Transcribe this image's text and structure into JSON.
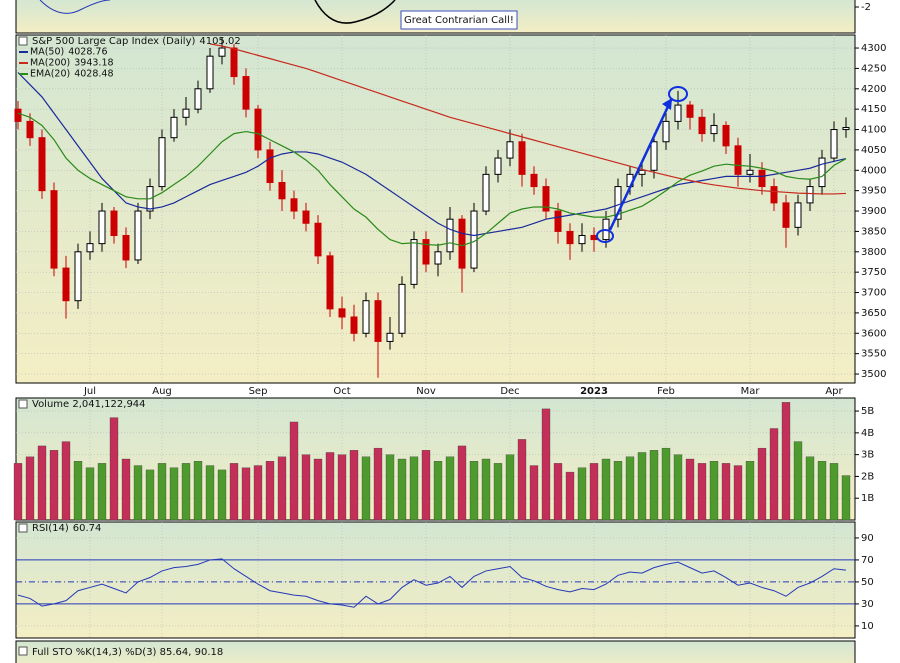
{
  "chart_data": [
    {
      "type": "candlestick",
      "title": "S&P 500 Large Cap Index (Daily)",
      "categories": [
        null,
        null,
        null,
        null,
        null,
        null,
        "Jul",
        null,
        null,
        null,
        null,
        null,
        "Aug",
        null,
        null,
        null,
        null,
        null,
        null,
        null,
        "Sep",
        null,
        null,
        null,
        null,
        null,
        null,
        "Oct",
        null,
        null,
        null,
        null,
        null,
        null,
        "Nov",
        null,
        null,
        null,
        null,
        null,
        null,
        "Dec",
        null,
        null,
        null,
        null,
        null,
        null,
        "2023",
        null,
        null,
        null,
        null,
        null,
        "Feb",
        null,
        null,
        null,
        null,
        null,
        null,
        "Mar",
        null,
        null,
        null,
        null,
        null,
        null,
        "Apr",
        null
      ],
      "open": [
        4150,
        4120,
        4080,
        3950,
        3760,
        3680,
        3800,
        3820,
        3900,
        3840,
        3780,
        3900,
        3960,
        4080,
        4130,
        4150,
        4200,
        4280,
        4300,
        4230,
        4150,
        4050,
        3970,
        3930,
        3900,
        3870,
        3790,
        3660,
        3640,
        3600,
        3680,
        3580,
        3600,
        3720,
        3830,
        3770,
        3800,
        3880,
        3760,
        3900,
        3990,
        4030,
        4070,
        3990,
        3960,
        3900,
        3850,
        3820,
        3840,
        3830,
        3880,
        3960,
        3990,
        4000,
        4070,
        4120,
        4160,
        4130,
        4090,
        4110,
        4060,
        3990,
        4000,
        3960,
        3920,
        3860,
        3920,
        3960,
        4030,
        4100
      ],
      "high": [
        4170,
        4140,
        4100,
        3970,
        3790,
        3820,
        3850,
        3920,
        3910,
        3860,
        3920,
        3980,
        4100,
        4150,
        4180,
        4220,
        4300,
        4325,
        4310,
        4250,
        4160,
        4070,
        4000,
        3950,
        3920,
        3890,
        3800,
        3690,
        3670,
        3700,
        3700,
        3640,
        3740,
        3850,
        3850,
        3820,
        3910,
        3890,
        3920,
        4010,
        4050,
        4100,
        4090,
        4010,
        3980,
        3920,
        3870,
        3870,
        3860,
        3900,
        3980,
        4010,
        4020,
        4090,
        4140,
        4195,
        4170,
        4150,
        4140,
        4120,
        4080,
        4040,
        4020,
        3980,
        3940,
        3940,
        3980,
        4050,
        4120,
        4130
      ],
      "low": [
        4100,
        4060,
        3930,
        3740,
        3636,
        3660,
        3780,
        3800,
        3820,
        3760,
        3770,
        3880,
        3950,
        4070,
        4110,
        4140,
        4190,
        4260,
        4210,
        4130,
        4030,
        3950,
        3900,
        3880,
        3850,
        3770,
        3640,
        3610,
        3580,
        3590,
        3491,
        3560,
        3590,
        3710,
        3750,
        3740,
        3780,
        3700,
        3750,
        3890,
        3970,
        4010,
        3960,
        3940,
        3880,
        3820,
        3780,
        3800,
        3800,
        3810,
        3860,
        3940,
        3960,
        3980,
        4050,
        4100,
        4100,
        4070,
        4070,
        4040,
        3960,
        3970,
        3940,
        3900,
        3810,
        3840,
        3900,
        3940,
        4020,
        4080
      ],
      "close": [
        4120,
        4080,
        3950,
        3760,
        3680,
        3800,
        3820,
        3900,
        3840,
        3780,
        3900,
        3960,
        4080,
        4130,
        4150,
        4200,
        4280,
        4300,
        4230,
        4150,
        4050,
        3970,
        3930,
        3900,
        3870,
        3790,
        3660,
        3640,
        3600,
        3680,
        3580,
        3600,
        3720,
        3830,
        3770,
        3800,
        3880,
        3760,
        3900,
        3990,
        4030,
        4070,
        3990,
        3960,
        3900,
        3850,
        3820,
        3840,
        3830,
        3880,
        3960,
        3990,
        4000,
        4070,
        4120,
        4160,
        4130,
        4090,
        4110,
        4060,
        3990,
        4000,
        3960,
        3920,
        3860,
        3920,
        3960,
        4030,
        4100,
        4105.02
      ],
      "up_color": "#000000",
      "down_color": "#cc0000",
      "series": [
        {
          "name": "MA(50)",
          "color": "#1a2a9c",
          "values": [
            4240,
            4210,
            4180,
            4140,
            4100,
            4060,
            4020,
            3980,
            3950,
            3920,
            3910,
            3905,
            3910,
            3920,
            3935,
            3950,
            3965,
            3975,
            3985,
            3995,
            4010,
            4030,
            4040,
            4045,
            4045,
            4040,
            4030,
            4020,
            4005,
            3990,
            3970,
            3950,
            3930,
            3910,
            3890,
            3870,
            3855,
            3845,
            3840,
            3845,
            3850,
            3855,
            3860,
            3870,
            3880,
            3885,
            3890,
            3895,
            3900,
            3905,
            3915,
            3925,
            3935,
            3945,
            3955,
            3965,
            3970,
            3975,
            3980,
            3985,
            3985,
            3985,
            3985,
            3990,
            3995,
            4000,
            4005,
            4015,
            4022,
            4028.76
          ]
        },
        {
          "name": "MA(200)",
          "color": "#c8281e",
          "values": [
            null,
            null,
            null,
            null,
            null,
            null,
            null,
            null,
            null,
            null,
            null,
            null,
            null,
            null,
            null,
            null,
            4310,
            4305,
            4298,
            4290,
            4282,
            4274,
            4266,
            4258,
            4250,
            4240,
            4230,
            4220,
            4210,
            4200,
            4190,
            4180,
            4170,
            4160,
            4150,
            4140,
            4130,
            4122,
            4114,
            4106,
            4098,
            4090,
            4082,
            4074,
            4066,
            4058,
            4050,
            4042,
            4034,
            4026,
            4018,
            4010,
            4002,
            3995,
            3988,
            3981,
            3975,
            3969,
            3964,
            3960,
            3956,
            3953,
            3950,
            3948,
            3946,
            3944,
            3943,
            3942,
            3942,
            3943.18
          ]
        },
        {
          "name": "EMA(20)",
          "color": "#2a8a1a",
          "values": [
            4140,
            4130,
            4110,
            4075,
            4030,
            4000,
            3980,
            3965,
            3950,
            3935,
            3930,
            3930,
            3945,
            3965,
            3985,
            4010,
            4040,
            4070,
            4090,
            4095,
            4090,
            4075,
            4060,
            4045,
            4025,
            4000,
            3965,
            3935,
            3905,
            3885,
            3855,
            3830,
            3820,
            3822,
            3818,
            3816,
            3822,
            3815,
            3825,
            3845,
            3870,
            3895,
            3905,
            3910,
            3910,
            3905,
            3895,
            3890,
            3885,
            3885,
            3892,
            3902,
            3912,
            3930,
            3950,
            3972,
            3988,
            3998,
            4010,
            4015,
            4012,
            4010,
            4005,
            3998,
            3985,
            3980,
            3978,
            3985,
            4012,
            4028.48
          ]
        }
      ],
      "ylim": [
        3478,
        4332
      ],
      "yticks": [
        3500,
        3550,
        3600,
        3650,
        3700,
        3750,
        3800,
        3850,
        3900,
        3950,
        4000,
        4050,
        4100,
        4150,
        4200,
        4250,
        4300
      ],
      "grid": true
    },
    {
      "type": "bar",
      "title": "Volume 2,041,122,944",
      "values": [
        2.6,
        2.9,
        3.4,
        3.2,
        3.6,
        2.7,
        2.4,
        2.6,
        4.7,
        2.8,
        2.5,
        2.3,
        2.6,
        2.4,
        2.6,
        2.7,
        2.5,
        2.3,
        2.6,
        2.4,
        2.5,
        2.7,
        2.9,
        4.5,
        3.0,
        2.8,
        3.1,
        3.0,
        3.2,
        2.9,
        3.3,
        3.0,
        2.8,
        2.9,
        3.2,
        2.7,
        2.9,
        3.4,
        2.7,
        2.8,
        2.6,
        3.0,
        3.7,
        2.5,
        5.1,
        2.6,
        2.2,
        2.4,
        2.6,
        2.8,
        2.7,
        2.9,
        3.1,
        3.2,
        3.3,
        3.0,
        2.8,
        2.6,
        2.7,
        2.6,
        2.5,
        2.7,
        3.3,
        4.2,
        5.4,
        3.6,
        2.9,
        2.7,
        2.6,
        2.041122944
      ],
      "up_color": "#4e9a2e",
      "down_color": "#c2305a",
      "ylim": [
        0,
        5.6
      ],
      "yticks": [
        {
          "value": 1,
          "label": "1B"
        },
        {
          "value": 2,
          "label": "2B"
        },
        {
          "value": 3,
          "label": "3B"
        },
        {
          "value": 4,
          "label": "4B"
        },
        {
          "value": 5,
          "label": "5B"
        }
      ],
      "grid": true
    },
    {
      "type": "line",
      "title": "RSI(14)",
      "color": "#2438b8",
      "values": [
        38,
        35,
        28,
        30,
        33,
        42,
        45,
        48,
        44,
        40,
        50,
        54,
        60,
        63,
        64,
        66,
        70,
        71,
        62,
        55,
        48,
        42,
        40,
        38,
        37,
        33,
        30,
        29,
        27,
        37,
        30,
        34,
        45,
        52,
        47,
        49,
        55,
        45,
        55,
        60,
        62,
        64,
        54,
        51,
        46,
        43,
        41,
        44,
        43,
        48,
        56,
        59,
        58,
        63,
        66,
        68,
        63,
        58,
        60,
        54,
        47,
        49,
        45,
        42,
        37,
        45,
        49,
        55,
        62,
        60.74
      ],
      "reference_lines": [
        {
          "value": 70,
          "style": "solid"
        },
        {
          "value": 50,
          "style": "dashed"
        },
        {
          "value": 30,
          "style": "solid"
        }
      ],
      "ylim": [
        -1,
        104.5
      ],
      "yticks": [
        10,
        30,
        50,
        70,
        90
      ],
      "grid": true
    }
  ],
  "top_panel": {
    "yticks": [
      -2
    ],
    "annotation": "Great Contrarian Call!"
  },
  "sto_panel": {
    "title": "Full STO %K(14,3) %D(3) 85.64, 90.18"
  }
}
